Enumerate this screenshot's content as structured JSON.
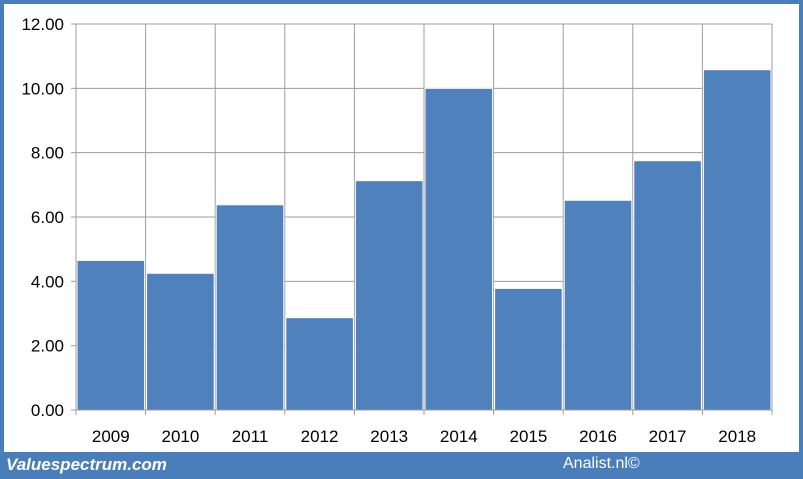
{
  "chart_data": {
    "type": "bar",
    "title": "",
    "xlabel": "",
    "ylabel": "",
    "categories": [
      "2009",
      "2010",
      "2011",
      "2012",
      "2013",
      "2014",
      "2015",
      "2016",
      "2017",
      "2018"
    ],
    "values": [
      4.65,
      4.25,
      6.38,
      2.87,
      7.13,
      10.0,
      3.78,
      6.52,
      7.75,
      10.58
    ],
    "ylim": [
      0,
      12
    ],
    "yticks": [
      "0.00",
      "2.00",
      "4.00",
      "6.00",
      "8.00",
      "10.00",
      "12.00"
    ],
    "grid": true,
    "legend": "none",
    "colors": {
      "bar": "#4f81bd",
      "bar_edge": "#ffffff",
      "grid": "#9c9c9c",
      "frame": "#4a7ebb"
    }
  },
  "footer": {
    "source_left": "Valuespectrum.com",
    "source_right": "Analist.nl©"
  }
}
